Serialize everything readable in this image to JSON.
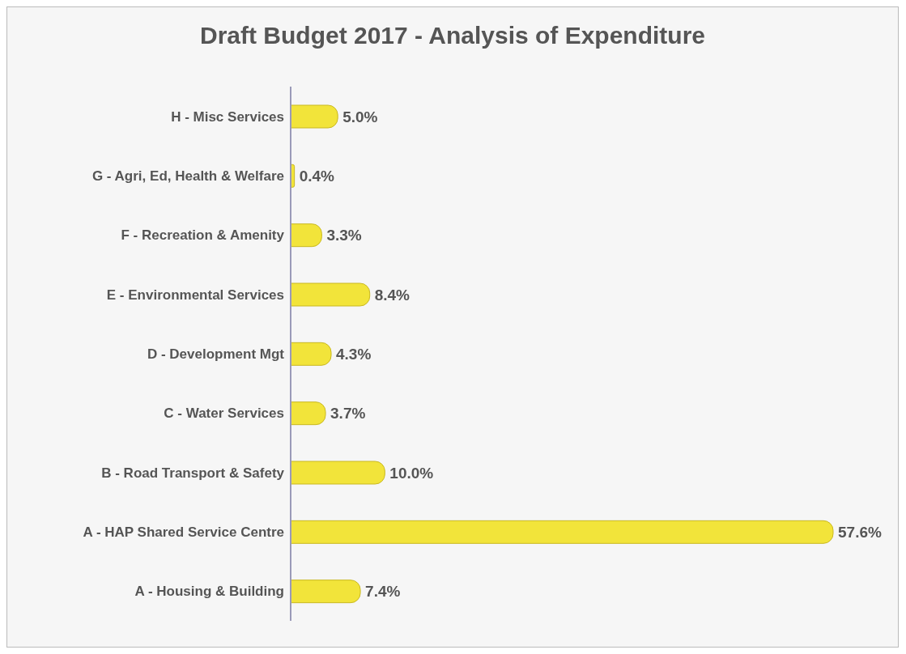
{
  "chart_data": {
    "type": "bar",
    "orientation": "horizontal",
    "title": "Draft Budget 2017 - Analysis of Expenditure",
    "categories": [
      "H - Misc Services",
      "G - Agri, Ed, Health & Welfare",
      "F - Recreation & Amenity",
      "E - Environmental Services",
      "D - Development Mgt",
      "C - Water Services",
      "B - Road Transport & Safety",
      "A - HAP Shared Service Centre",
      "A - Housing & Building"
    ],
    "values": [
      5.0,
      0.4,
      3.3,
      8.4,
      4.3,
      3.7,
      10.0,
      57.6,
      7.4
    ],
    "value_labels": [
      "5.0%",
      "0.4%",
      "3.3%",
      "8.4%",
      "4.3%",
      "3.7%",
      "10.0%",
      "57.6%",
      "7.4%"
    ],
    "color": "#f2e43a",
    "grid": false
  }
}
